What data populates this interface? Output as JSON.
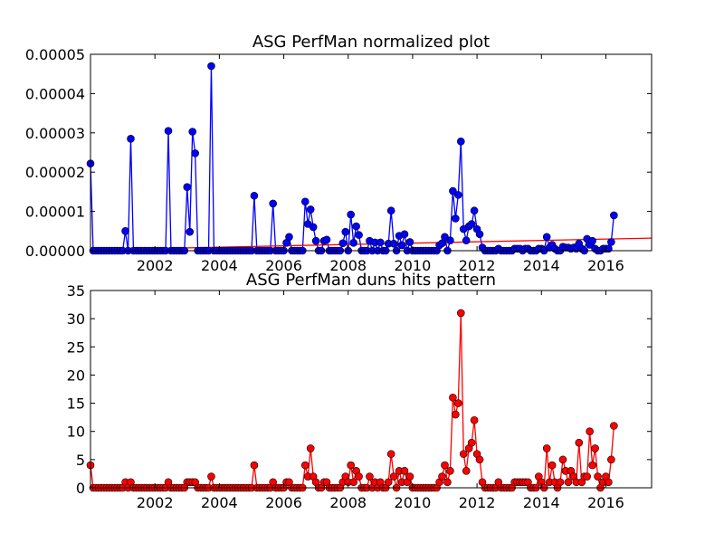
{
  "chart_data": [
    {
      "type": "line",
      "title": "ASG PerfMan normalized plot",
      "xlabel": "",
      "ylabel": "",
      "xlim": [
        2000.0,
        2017.42
      ],
      "ylim": [
        0,
        5e-05
      ],
      "x_ticks": [
        2002,
        2004,
        2006,
        2008,
        2010,
        2012,
        2014,
        2016
      ],
      "y_ticks": [
        0,
        1e-05,
        2e-05,
        3e-05,
        4e-05,
        5e-05
      ],
      "y_tick_labels": [
        "0.00000",
        "0.00001",
        "0.00002",
        "0.00003",
        "0.00004",
        "0.00005"
      ],
      "grid": false,
      "series": [
        {
          "color": "#0000ff",
          "marker": "circle",
          "x_start": 2000.0,
          "x_step": 0.08333,
          "values": [
            2.22e-05,
            0,
            0,
            0,
            0,
            0,
            0,
            0,
            0,
            0,
            0,
            0,
            0,
            5e-06,
            0,
            2.85e-05,
            0,
            0,
            0,
            0,
            0,
            0,
            0,
            0,
            0,
            0,
            0,
            0,
            0,
            3.05e-05,
            0,
            0,
            0,
            0,
            0,
            0,
            1.62e-05,
            4.8e-06,
            3.03e-05,
            2.48e-05,
            0,
            0,
            0,
            0,
            0,
            4.7e-05,
            0,
            0,
            0,
            0,
            0,
            0,
            0,
            0,
            0,
            0,
            0,
            0,
            0,
            0,
            0,
            1.4e-05,
            0,
            0,
            0,
            0,
            0,
            0,
            1.2e-05,
            0,
            0,
            0,
            0,
            2e-06,
            3.5e-06,
            0,
            0,
            0,
            0,
            0,
            1.25e-05,
            6.8e-06,
            1.05e-05,
            6e-06,
            2.5e-06,
            0,
            0,
            2.5e-06,
            2.8e-06,
            0,
            0,
            0,
            0,
            0,
            1.9e-06,
            4.8e-06,
            0,
            9.2e-06,
            2e-06,
            6.2e-06,
            4e-06,
            0,
            0,
            0,
            2.5e-06,
            0,
            2.1e-06,
            0,
            2.1e-06,
            0,
            0,
            1.8e-06,
            1.02e-05,
            1.8e-06,
            0,
            3.8e-06,
            1.4e-06,
            4.2e-06,
            0,
            2.2e-06,
            0,
            0,
            0,
            0,
            0,
            0,
            0,
            0,
            0,
            0,
            1.4e-06,
            1.9e-06,
            3.5e-06,
            0,
            2.6e-06,
            1.52e-05,
            8.2e-06,
            1.42e-05,
            2.78e-05,
            5.5e-06,
            2.6e-06,
            6.2e-06,
            6.8e-06,
            1.02e-05,
            5.5e-06,
            4.2e-06,
            8e-07,
            0,
            0,
            0,
            0,
            0,
            5e-07,
            0,
            0,
            0,
            0,
            0,
            5e-07,
            5e-07,
            5e-07,
            0,
            5e-07,
            5e-07,
            0,
            0,
            0,
            5e-07,
            5e-07,
            0,
            3.5e-06,
            8e-07,
            1.5e-06,
            5e-07,
            0,
            0,
            1e-06,
            8e-07,
            8e-07,
            5e-07,
            8e-07,
            5e-07,
            1.8e-06,
            5e-07,
            0,
            3e-06,
            1.5e-06,
            2.5e-06,
            5e-07,
            0,
            0,
            5e-07,
            5e-07,
            5e-07,
            2.2e-06,
            9e-06
          ]
        },
        {
          "color": "#ff0000",
          "marker": "none",
          "trend_line": true,
          "x": [
            2000.0,
            2017.42
          ],
          "y": [
            2e-07,
            3.2e-06
          ]
        }
      ]
    },
    {
      "type": "line",
      "title": "ASG PerfMan duns hits pattern",
      "xlabel": "",
      "ylabel": "",
      "xlim": [
        2000.0,
        2017.42
      ],
      "ylim": [
        0,
        35
      ],
      "x_ticks": [
        2002,
        2004,
        2006,
        2008,
        2010,
        2012,
        2014,
        2016
      ],
      "y_ticks": [
        0,
        5,
        10,
        15,
        20,
        25,
        30,
        35
      ],
      "grid": false,
      "series": [
        {
          "color": "#ff0000",
          "marker": "circle",
          "x_start": 2000.0,
          "x_step": 0.08333,
          "values": [
            4,
            0,
            0,
            0,
            0,
            0,
            0,
            0,
            0,
            0,
            0,
            0,
            0,
            1,
            0,
            1,
            0,
            0,
            0,
            0,
            0,
            0,
            0,
            0,
            0,
            0,
            0,
            0,
            0,
            1,
            0,
            0,
            0,
            0,
            0,
            0,
            1,
            1,
            1,
            1,
            0,
            0,
            0,
            0,
            0,
            2,
            0,
            0,
            0,
            0,
            0,
            0,
            0,
            0,
            0,
            0,
            0,
            0,
            0,
            0,
            0,
            4,
            0,
            0,
            0,
            0,
            0,
            0,
            1,
            0,
            0,
            0,
            0,
            1,
            1,
            0,
            0,
            0,
            0,
            0,
            4,
            2,
            7,
            2,
            1,
            0,
            0,
            1,
            1,
            0,
            0,
            0,
            0,
            0,
            1,
            2,
            1,
            4,
            1,
            3,
            2,
            0,
            0,
            0,
            2,
            0,
            1,
            0,
            1,
            0,
            0,
            1,
            6,
            2,
            0,
            3,
            1,
            3,
            1,
            2,
            0,
            0,
            0,
            0,
            0,
            0,
            0,
            0,
            0,
            0,
            1,
            2,
            4,
            1,
            3,
            16,
            13,
            15,
            31,
            6,
            3,
            7,
            8,
            12,
            6,
            5,
            1,
            0,
            0,
            0,
            0,
            0,
            1,
            0,
            0,
            0,
            0,
            0,
            1,
            1,
            1,
            1,
            1,
            1,
            0,
            0,
            0,
            2,
            1,
            0,
            7,
            1,
            4,
            1,
            0,
            1,
            5,
            3,
            1,
            3,
            2,
            1,
            8,
            1,
            2,
            2,
            10,
            4,
            7,
            2,
            0,
            1,
            2,
            1,
            5,
            11
          ]
        }
      ]
    }
  ]
}
